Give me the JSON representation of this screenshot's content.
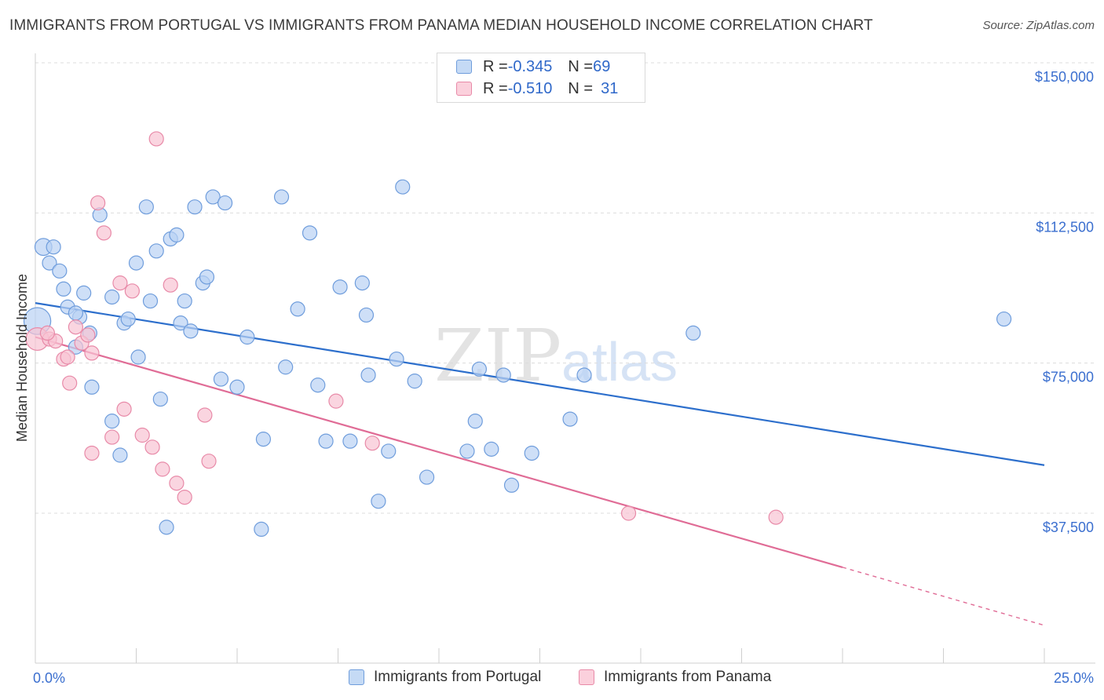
{
  "title": "IMMIGRANTS FROM PORTUGAL VS IMMIGRANTS FROM PANAMA MEDIAN HOUSEHOLD INCOME CORRELATION CHART",
  "source": "Source: ZipAtlas.com",
  "watermark": {
    "zip": "ZIP",
    "atlas": "atlas"
  },
  "legend": {
    "rows": [
      {
        "r_label": "R = ",
        "r_value": "-0.345",
        "n_label": "N = ",
        "n_value": "69",
        "color": "#a9c8f0"
      },
      {
        "r_label": "R = ",
        "r_value": "-0.510",
        "n_label": "N = ",
        "n_value": "31",
        "color": "#f7b8cb"
      }
    ]
  },
  "colors": {
    "portugal_fill": "#b9d2f3",
    "portugal_stroke": "#6f9ddc",
    "portugal_line": "#2d6fcc",
    "panama_fill": "#f8c3d3",
    "panama_stroke": "#e88aa8",
    "panama_line": "#e06c96",
    "grid": "#dcdcdc",
    "axis_label": "#3b6fcf"
  },
  "chart_data": {
    "type": "scatter",
    "title": "IMMIGRANTS FROM PORTUGAL VS IMMIGRANTS FROM PANAMA MEDIAN HOUSEHOLD INCOME CORRELATION CHART",
    "xlabel": "",
    "ylabel": "Median Household Income",
    "xlim": [
      0,
      25
    ],
    "ylim": [
      0,
      155000
    ],
    "x_tick_labels": [
      "0.0%",
      "25.0%"
    ],
    "y_ticks": [
      37500,
      75000,
      112500,
      150000
    ],
    "y_tick_labels": [
      "$37,500",
      "$75,000",
      "$112,500",
      "$150,000"
    ],
    "grid": "horizontal dashed",
    "legend_position": "bottom",
    "series": [
      {
        "name": "Immigrants from Portugal",
        "points": [
          [
            0.05,
            85500,
            1.9
          ],
          [
            0.2,
            104000,
            1.2
          ],
          [
            0.45,
            104000,
            1
          ],
          [
            0.35,
            100000,
            1
          ],
          [
            0.6,
            98000,
            1
          ],
          [
            0.7,
            93500,
            1
          ],
          [
            0.8,
            89000,
            1
          ],
          [
            1.1,
            86500,
            1
          ],
          [
            1.0,
            87500,
            1
          ],
          [
            1.2,
            92500,
            1
          ],
          [
            1.6,
            112000,
            1
          ],
          [
            1.9,
            91500,
            1
          ],
          [
            2.2,
            85000,
            1
          ],
          [
            2.3,
            86000,
            1
          ],
          [
            2.5,
            100000,
            1
          ],
          [
            2.75,
            114000,
            1
          ],
          [
            2.85,
            90500,
            1
          ],
          [
            3.0,
            103000,
            1
          ],
          [
            3.35,
            106000,
            1
          ],
          [
            3.5,
            107000,
            1
          ],
          [
            3.7,
            90500,
            1
          ],
          [
            3.6,
            85000,
            1
          ],
          [
            3.85,
            83000,
            1
          ],
          [
            3.95,
            114000,
            1
          ],
          [
            4.15,
            95000,
            1
          ],
          [
            4.25,
            96500,
            1
          ],
          [
            4.4,
            116500,
            1
          ],
          [
            4.7,
            115000,
            1
          ],
          [
            1.0,
            79000,
            1
          ],
          [
            1.35,
            82500,
            1
          ],
          [
            2.55,
            76500,
            1
          ],
          [
            1.4,
            69000,
            1
          ],
          [
            3.1,
            66000,
            1
          ],
          [
            1.9,
            60500,
            1
          ],
          [
            2.1,
            52000,
            1
          ],
          [
            3.25,
            34000,
            1
          ],
          [
            4.6,
            71000,
            1
          ],
          [
            5.0,
            69000,
            1
          ],
          [
            5.25,
            81500,
            1
          ],
          [
            5.65,
            56000,
            1
          ],
          [
            5.6,
            33500,
            1
          ],
          [
            6.1,
            116500,
            1
          ],
          [
            6.2,
            74000,
            1
          ],
          [
            6.5,
            88500,
            1
          ],
          [
            6.8,
            107500,
            1
          ],
          [
            7.0,
            69500,
            1
          ],
          [
            7.2,
            55500,
            1
          ],
          [
            7.55,
            94000,
            1
          ],
          [
            7.8,
            55500,
            1
          ],
          [
            8.1,
            95000,
            1
          ],
          [
            8.25,
            72000,
            1
          ],
          [
            8.5,
            40500,
            1
          ],
          [
            8.75,
            53000,
            1
          ],
          [
            8.95,
            76000,
            1
          ],
          [
            8.2,
            87000,
            1
          ],
          [
            9.1,
            119000,
            1
          ],
          [
            9.4,
            70500,
            1
          ],
          [
            9.7,
            46500,
            1
          ],
          [
            10.7,
            53000,
            1
          ],
          [
            10.9,
            60500,
            1
          ],
          [
            11.0,
            73500,
            1
          ],
          [
            11.3,
            53500,
            1
          ],
          [
            11.6,
            72000,
            1
          ],
          [
            11.8,
            44500,
            1
          ],
          [
            12.3,
            52500,
            1
          ],
          [
            13.25,
            61000,
            1
          ],
          [
            13.6,
            72000,
            1
          ],
          [
            16.3,
            82500,
            1
          ],
          [
            24.0,
            86000,
            1
          ]
        ]
      },
      {
        "name": "Immigrants from Panama",
        "points": [
          [
            0.05,
            81000,
            1.6
          ],
          [
            0.35,
            81000,
            1
          ],
          [
            0.5,
            80500,
            1
          ],
          [
            0.7,
            76000,
            1
          ],
          [
            0.8,
            76500,
            1
          ],
          [
            0.85,
            70000,
            1
          ],
          [
            1.0,
            84000,
            1
          ],
          [
            1.15,
            80000,
            1
          ],
          [
            1.3,
            82000,
            1
          ],
          [
            1.4,
            77500,
            1
          ],
          [
            1.4,
            52500,
            1
          ],
          [
            1.55,
            115000,
            1
          ],
          [
            1.7,
            107500,
            1
          ],
          [
            1.9,
            56500,
            1
          ],
          [
            2.1,
            95000,
            1
          ],
          [
            2.2,
            63500,
            1
          ],
          [
            2.4,
            93000,
            1
          ],
          [
            2.65,
            57000,
            1
          ],
          [
            2.9,
            54000,
            1
          ],
          [
            3.0,
            131000,
            1
          ],
          [
            3.15,
            48500,
            1
          ],
          [
            3.35,
            94500,
            1
          ],
          [
            3.5,
            45000,
            1
          ],
          [
            3.7,
            41500,
            1
          ],
          [
            4.2,
            62000,
            1
          ],
          [
            4.3,
            50500,
            1
          ],
          [
            7.45,
            65500,
            1
          ],
          [
            8.35,
            55000,
            1
          ],
          [
            14.7,
            37500,
            1
          ],
          [
            18.35,
            36500,
            1
          ],
          [
            0.3,
            82500,
            1
          ]
        ]
      }
    ],
    "trend_lines": [
      {
        "series": "Immigrants from Portugal",
        "x": [
          0,
          25
        ],
        "y": [
          90000,
          49500
        ]
      },
      {
        "series": "Immigrants from Panama",
        "x": [
          0,
          20
        ],
        "y": [
          81500,
          24000
        ],
        "dashed_extension_to_x": 25,
        "dashed_extension_y": 9500
      }
    ]
  }
}
